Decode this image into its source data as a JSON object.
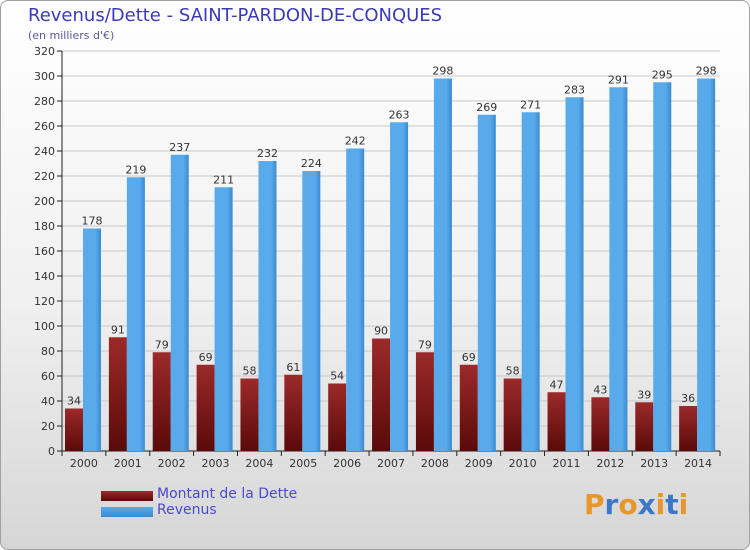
{
  "title": "Revenus/Dette - SAINT-PARDON-DE-CONQUES",
  "subtitle": "(en milliers d'€)",
  "logo": {
    "text": "Proxiti",
    "letters": [
      {
        "ch": "P",
        "color": "#e8982a"
      },
      {
        "ch": "r",
        "color": "#3c78c8"
      },
      {
        "ch": "o",
        "color": "#e8982a"
      },
      {
        "ch": "x",
        "color": "#3c78c8"
      },
      {
        "ch": "i",
        "color": "#e8982a"
      },
      {
        "ch": "t",
        "color": "#3c78c8"
      },
      {
        "ch": "i",
        "color": "#e8982a"
      }
    ]
  },
  "legend": {
    "debt_label": "Montant de la Dette",
    "revenue_label": "Revenus"
  },
  "colors": {
    "debt_top": "#9c2a2a",
    "debt_bottom": "#5a0a0a",
    "revenue_main": "#58aaea",
    "revenue_dark": "#3a8ad2",
    "grid": "#c8c8c8",
    "axis": "#202020",
    "text": "#333333"
  },
  "chart_data": {
    "type": "bar",
    "categories": [
      "2000",
      "2001",
      "2002",
      "2003",
      "2004",
      "2005",
      "2006",
      "2007",
      "2008",
      "2009",
      "2010",
      "2011",
      "2012",
      "2013",
      "2014"
    ],
    "series": [
      {
        "name": "Montant de la Dette",
        "values": [
          34,
          91,
          79,
          69,
          58,
          61,
          54,
          90,
          79,
          69,
          58,
          47,
          43,
          39,
          36
        ]
      },
      {
        "name": "Revenus",
        "values": [
          178,
          219,
          237,
          211,
          232,
          224,
          242,
          263,
          298,
          269,
          271,
          283,
          291,
          295,
          298
        ]
      }
    ],
    "yticks": [
      0,
      20,
      40,
      60,
      80,
      100,
      120,
      140,
      160,
      180,
      200,
      220,
      240,
      260,
      280,
      300,
      320
    ],
    "ylim": [
      0,
      320
    ],
    "grid": true,
    "legend_position": "bottom-left"
  }
}
